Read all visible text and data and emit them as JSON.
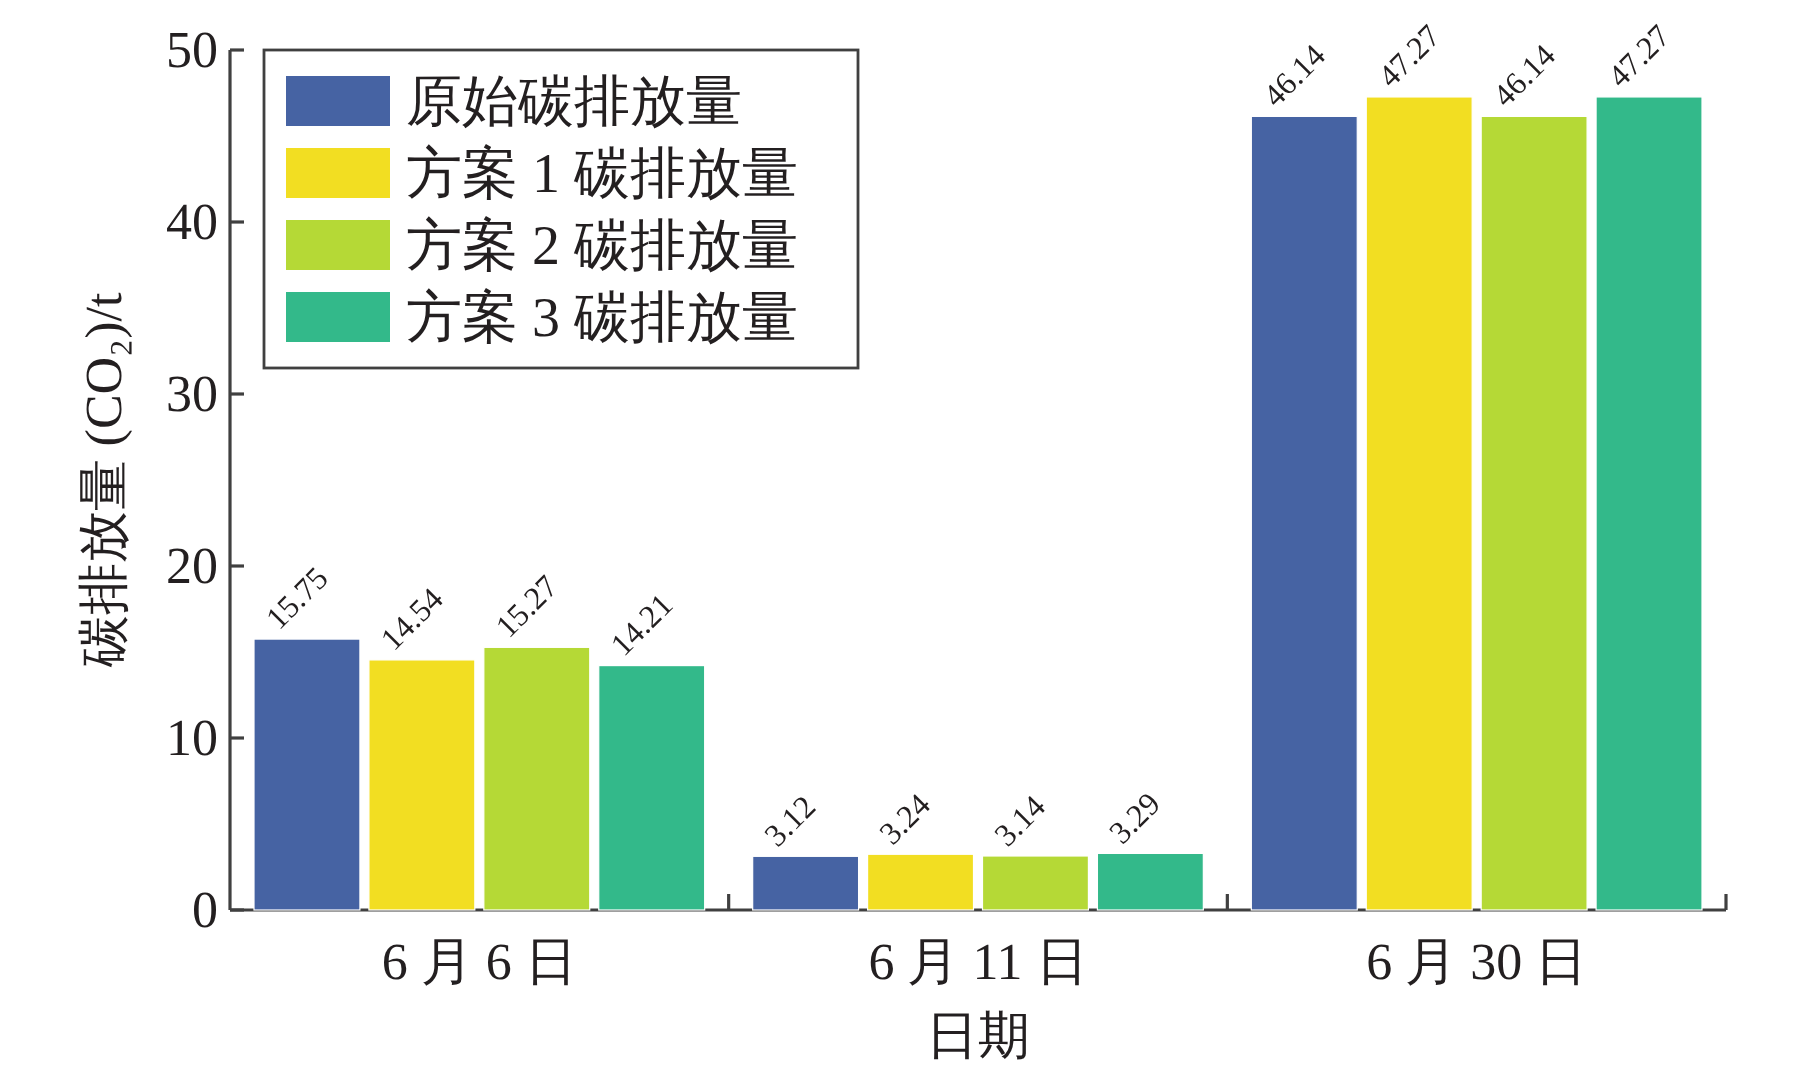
{
  "chart_data": {
    "type": "bar",
    "xlabel": "日期",
    "ylabel": "碳排放量 (CO₂)/t",
    "categories": [
      "6 月 6 日",
      "6 月 11 日",
      "6 月 30 日"
    ],
    "series": [
      {
        "name": "原始碳排放量",
        "color": "#4663a3",
        "values": [
          15.75,
          3.12,
          46.14
        ]
      },
      {
        "name": "方案 1 碳排放量",
        "color": "#f2de22",
        "values": [
          14.54,
          3.24,
          47.27
        ]
      },
      {
        "name": "方案 2 碳排放量",
        "color": "#b5d936",
        "values": [
          15.27,
          3.14,
          46.14
        ]
      },
      {
        "name": "方案 3 碳排放量",
        "color": "#33b98a",
        "values": [
          14.21,
          3.29,
          47.27
        ]
      }
    ],
    "ylim": [
      0,
      50
    ],
    "yticks": [
      0,
      10,
      20,
      30,
      40,
      50
    ],
    "data_labels": true,
    "legend": "top left"
  }
}
